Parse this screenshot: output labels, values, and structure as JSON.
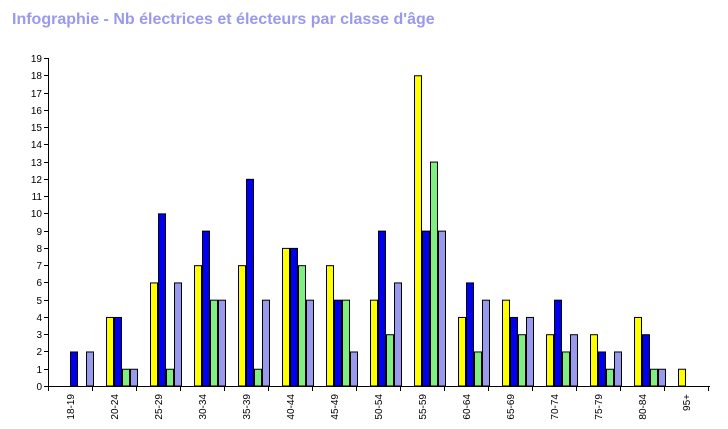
{
  "chart_data": {
    "type": "bar",
    "title": "Infographie - Nb électrices et électeurs par classe d'âge",
    "xlabel": "",
    "ylabel": "",
    "ylim": [
      0,
      19
    ],
    "yticks": [
      0,
      1,
      2,
      3,
      4,
      5,
      6,
      7,
      8,
      9,
      10,
      11,
      12,
      13,
      14,
      15,
      16,
      17,
      18,
      19
    ],
    "grid": false,
    "legend": "none",
    "categories": [
      "18-19",
      "20-24",
      "25-29",
      "30-34",
      "35-39",
      "40-44",
      "45-49",
      "50-54",
      "55-59",
      "60-64",
      "65-69",
      "70-74",
      "75-79",
      "80-84",
      "95+"
    ],
    "series": [
      {
        "color": "#ffff00",
        "values": [
          0,
          4,
          6,
          7,
          7,
          8,
          7,
          5,
          18,
          4,
          5,
          3,
          3,
          4,
          1
        ]
      },
      {
        "color": "#0000ee",
        "values": [
          2,
          4,
          10,
          9,
          12,
          8,
          5,
          9,
          9,
          6,
          4,
          5,
          2,
          3,
          0
        ]
      },
      {
        "color": "#80ee80",
        "values": [
          0,
          1,
          1,
          5,
          1,
          7,
          5,
          3,
          13,
          2,
          3,
          2,
          1,
          1,
          0
        ]
      },
      {
        "color": "#9999ee",
        "values": [
          2,
          1,
          6,
          5,
          5,
          5,
          2,
          6,
          9,
          5,
          4,
          3,
          2,
          1,
          0
        ]
      }
    ]
  }
}
